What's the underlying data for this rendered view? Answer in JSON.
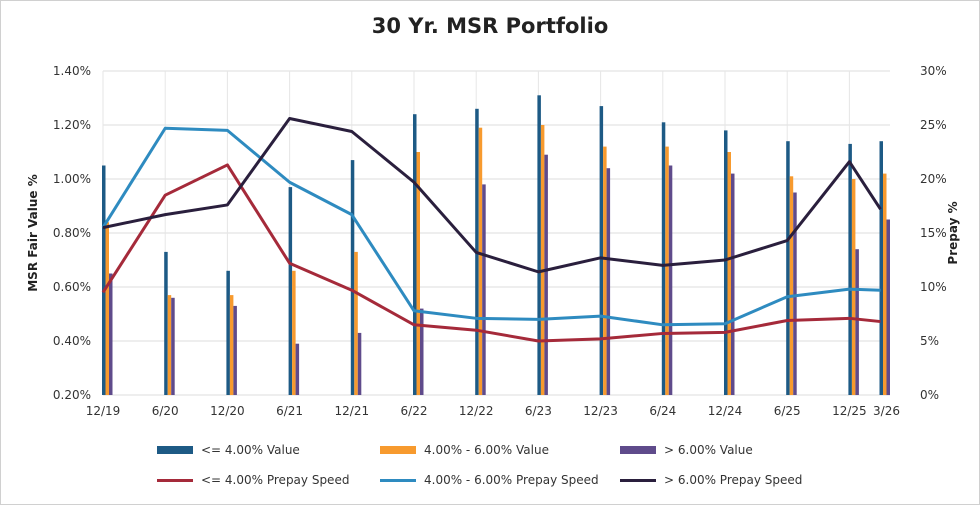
{
  "chart_data": {
    "type": "bar+line",
    "title": "30 Yr. MSR Portfolio",
    "ylabel_left": "MSR Fair Value %",
    "ylabel_right": "Prepay %",
    "ylim_left": [
      0.2,
      1.4
    ],
    "ylim_right": [
      0,
      30
    ],
    "yticks_left": [
      "0.20%",
      "0.40%",
      "0.60%",
      "0.80%",
      "1.00%",
      "1.20%",
      "1.40%"
    ],
    "yticks_right": [
      "0%",
      "5%",
      "10%",
      "15%",
      "20%",
      "25%",
      "30%"
    ],
    "categories": [
      "12/19",
      "6/20",
      "12/20",
      "6/21",
      "12/21",
      "6/22",
      "12/22",
      "6/23",
      "12/23",
      "6/24",
      "12/24",
      "6/25",
      "12/25",
      "3/26"
    ],
    "grid": true,
    "legend_position": "bottom",
    "bar_series": [
      {
        "name": "<= 4.00% Value",
        "color": "#1d5a85",
        "values": [
          1.05,
          0.73,
          0.66,
          0.97,
          1.07,
          1.24,
          1.26,
          1.31,
          1.27,
          1.21,
          1.18,
          1.14,
          1.13,
          1.14
        ]
      },
      {
        "name": "4.00% - 6.00% Value",
        "color": "#f79a2e",
        "values": [
          0.84,
          0.57,
          0.57,
          0.66,
          0.73,
          1.1,
          1.19,
          1.2,
          1.12,
          1.12,
          1.1,
          1.01,
          1.0,
          1.02
        ]
      },
      {
        "name": "> 6.00% Value",
        "color": "#5f4b8b",
        "values": [
          0.65,
          0.56,
          0.53,
          0.39,
          0.43,
          0.52,
          0.98,
          1.09,
          1.04,
          1.05,
          1.02,
          0.95,
          0.74,
          0.85
        ]
      }
    ],
    "line_series": [
      {
        "name": "<= 4.00% Prepay Speed",
        "color": "#a52a3a",
        "values": [
          9.5,
          18.5,
          21.3,
          12.2,
          9.7,
          6.5,
          6.0,
          5.0,
          5.2,
          5.7,
          5.8,
          6.9,
          7.1,
          6.8
        ]
      },
      {
        "name": "4.00% - 6.00% Prepay Speed",
        "color": "#2e8bc0",
        "values": [
          15.5,
          24.7,
          24.5,
          19.7,
          16.7,
          7.8,
          7.1,
          7.0,
          7.3,
          6.5,
          6.6,
          9.1,
          9.8,
          9.7
        ]
      },
      {
        "name": "> 6.00% Prepay Speed",
        "color": "#2a1f3d",
        "values": [
          15.5,
          16.7,
          17.6,
          25.6,
          24.4,
          19.7,
          13.2,
          11.4,
          12.7,
          12.0,
          12.5,
          14.3,
          21.6,
          17.2
        ]
      }
    ]
  }
}
